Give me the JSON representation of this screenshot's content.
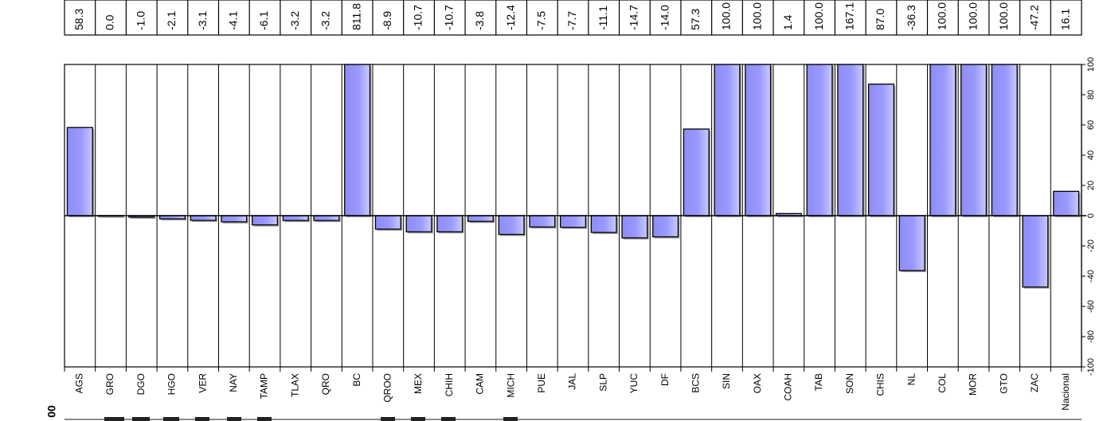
{
  "chart_data": {
    "type": "bar",
    "categories": [
      "AGS",
      "GRO",
      "DGO",
      "HGO",
      "VER",
      "NAY",
      "TAMP",
      "TLAX",
      "QRO",
      "BC",
      "QROO",
      "MEX",
      "CHIH",
      "CAM",
      "MICH",
      "PUE",
      "JAL",
      "SLP",
      "YUC",
      "DF",
      "BCS",
      "SIN",
      "OAX",
      "COAH",
      "TAB",
      "SON",
      "CHIS",
      "NL",
      "COL",
      "MOR",
      "GTO",
      "ZAC",
      "Nacional"
    ],
    "values": [
      58.3,
      0.0,
      -1.0,
      -2.1,
      -3.1,
      -4.1,
      -6.1,
      -3.2,
      -3.2,
      811.8,
      -8.9,
      -10.7,
      -10.7,
      -3.8,
      -12.4,
      -7.5,
      -7.7,
      -11.1,
      -14.7,
      -14.0,
      57.3,
      100.0,
      100.0,
      1.4,
      100.0,
      167.1,
      87.0,
      -36.3,
      100.0,
      100.0,
      100.0,
      -47.2,
      16.1
    ],
    "value_labels": [
      "58.3",
      "0.0",
      "-1.0",
      "-2.1",
      "-3.1",
      "-4.1",
      "-6.1",
      "-3.2",
      "-3.2",
      "811.8",
      "-8.9",
      "-10.7",
      "-10.7",
      "-3.8",
      "-12.4",
      "-7.5",
      "-7.7",
      "-11.1",
      "-14.7",
      "-14.0",
      "57.3",
      "100.0",
      "100.0",
      "1.4",
      "100.0",
      "167.1",
      "87.0",
      "-36.3",
      "100.0",
      "100.0",
      "100.0",
      "-47.2",
      "16.1"
    ],
    "ylim": [
      -100,
      100
    ],
    "yticks": [
      "-100",
      "-80",
      "-60",
      "-40",
      "-20",
      "0",
      "20",
      "40",
      "60",
      "80",
      "100"
    ],
    "fragment_label": "00",
    "title": "",
    "xlabel": "",
    "ylabel": "",
    "grid": "vertical",
    "bar_color": "#9999ff"
  }
}
